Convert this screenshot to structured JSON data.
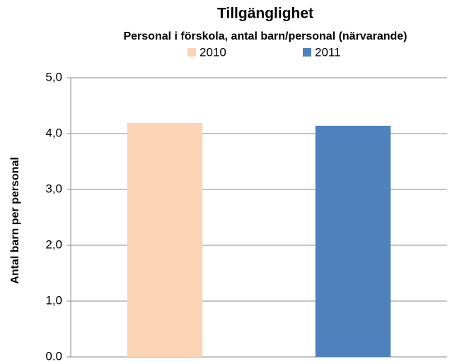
{
  "chart_data": {
    "type": "bar",
    "title": "Tillgänglighet",
    "subtitle": "Personal i förskola, antal barn/personal (närvarande)",
    "y_label": "Antal barn per personal",
    "categories": [
      null
    ],
    "series": [
      {
        "name": "2010",
        "color": "#fad4b4",
        "values": [
          4.19
        ]
      },
      {
        "name": "2011",
        "color": "#4f81bd",
        "values": [
          4.14
        ]
      }
    ],
    "ylim": [
      0,
      5
    ],
    "yticks": [
      {
        "value": 0,
        "label": "0.0"
      },
      {
        "value": 1,
        "label": "1,0"
      },
      {
        "value": 2,
        "label": "2,0"
      },
      {
        "value": 3,
        "label": "3,0"
      },
      {
        "value": 4,
        "label": "4,0"
      },
      {
        "value": 5,
        "label": "5,0"
      }
    ],
    "grid": true,
    "legend": "top"
  }
}
